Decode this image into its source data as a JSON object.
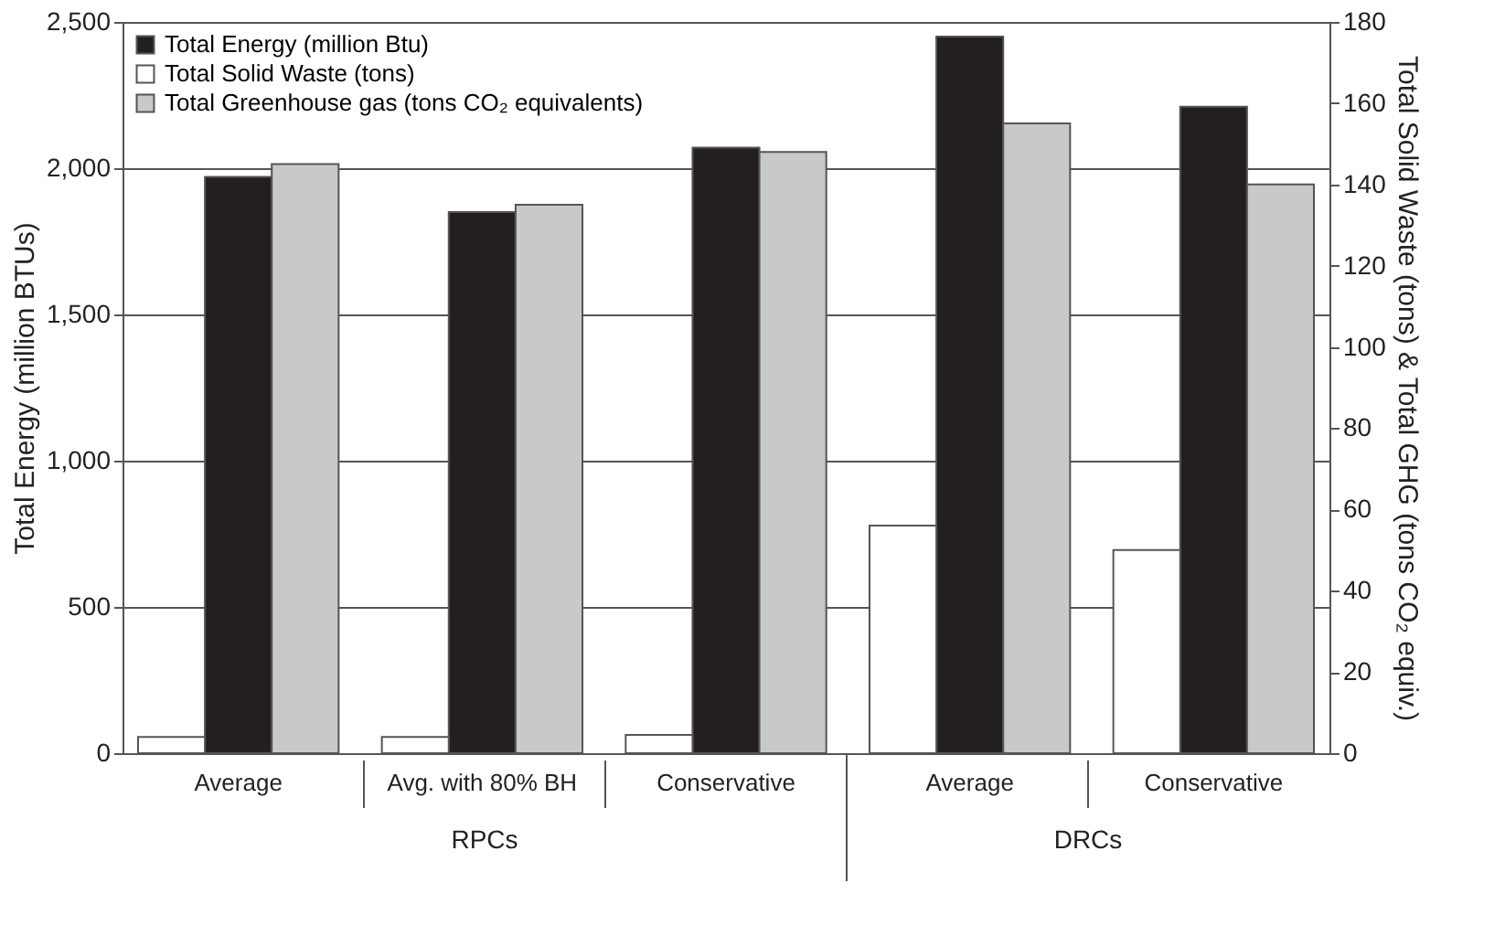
{
  "chart_data": {
    "type": "bar",
    "categories": [
      "Average",
      "Avg. with 80% BH",
      "Conservative",
      "Average",
      "Conservative"
    ],
    "ylabel": "Total Energy (million BTUs)",
    "y2label": "Total Solid Waste (tons) & Total GHG (tons CO₂ equiv.)",
    "series": [
      {
        "name": "Total Energy (million Btu)",
        "color": "#231f20",
        "values": [
          1970,
          1850,
          2070,
          2450,
          2210
        ]
      },
      {
        "name": "Total Solid Waste (tons)",
        "color": "#ffffff",
        "axis": "y2",
        "values": [
          4,
          4,
          4.5,
          56,
          50
        ]
      },
      {
        "name": "Total Greenhouse gas (tons CO₂ equivalents)",
        "color": "#c8c9cb",
        "axis": "y2",
        "values": [
          145,
          135,
          148,
          155,
          140
        ]
      }
    ],
    "ylim": [
      0,
      2500
    ],
    "yticks": [
      0,
      500,
      {
        "value": 1000,
        "label": "1,000"
      },
      {
        "value": 1500,
        "label": "1,500"
      },
      {
        "value": 2000,
        "label": "2,000"
      },
      {
        "value": 2500,
        "label": "2,500"
      }
    ],
    "y2lim": [
      0,
      180
    ],
    "y2ticks": [
      0,
      20,
      40,
      60,
      80,
      100,
      120,
      140,
      160,
      180
    ],
    "annotations": [
      "RPCs",
      "DRCs"
    ],
    "grid": "y",
    "legend": "top left"
  }
}
